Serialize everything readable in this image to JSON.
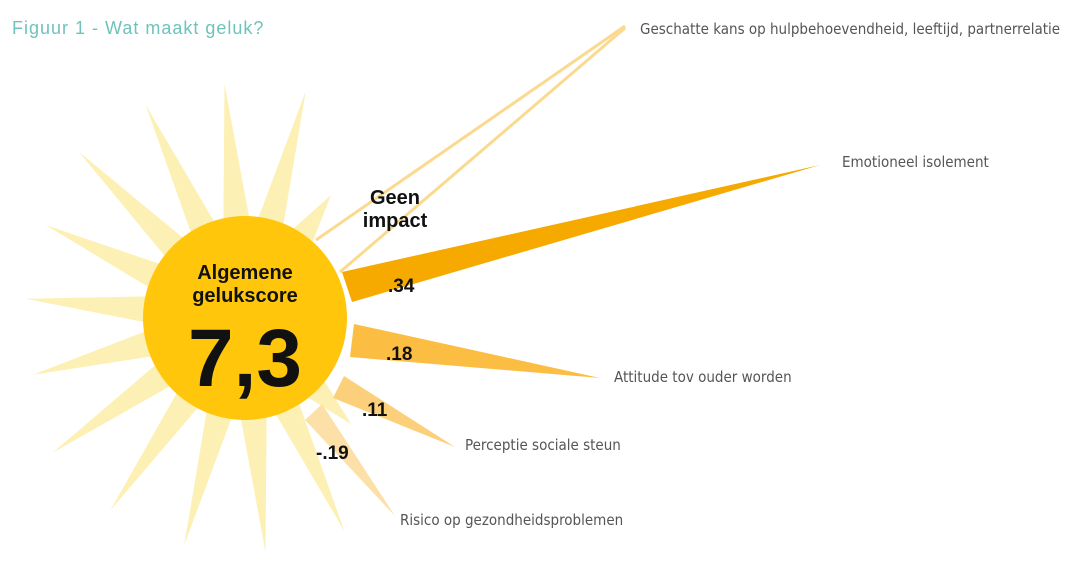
{
  "title": "Figuur 1 - Wat maakt geluk?",
  "center": {
    "label": "Algemene gelukscore",
    "score": "7,3"
  },
  "no_impact": {
    "label": "Geen impact",
    "factors": "Geschatte kans op hulpbehoevendheid, leeftijd, partnerrelatie"
  },
  "factors": [
    {
      "label": "Emotioneel isolement",
      "coefficient": ".34"
    },
    {
      "label": "Attitude tov ouder worden",
      "coefficient": ".18"
    },
    {
      "label": "Perceptie sociale steun",
      "coefficient": ".11"
    },
    {
      "label": "Risico op gezondheidsproblemen",
      "coefficient": "-.19"
    }
  ]
}
